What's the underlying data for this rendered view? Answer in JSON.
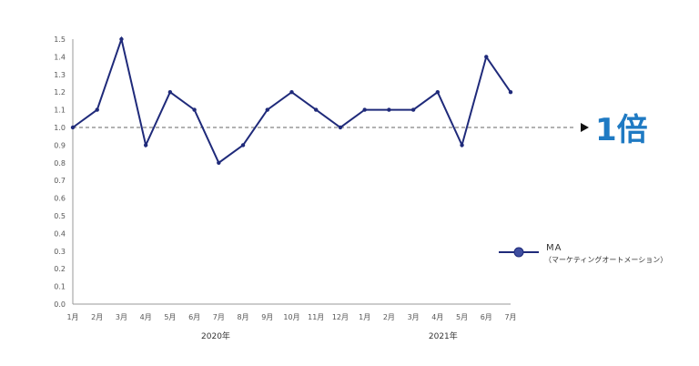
{
  "chart_data": {
    "type": "line",
    "title": "",
    "xlabel": "",
    "ylabel": "",
    "ylim": [
      0,
      1.5
    ],
    "yticks": [
      "0.0",
      "0.1",
      "0.2",
      "0.3",
      "0.4",
      "0.5",
      "0.6",
      "0.7",
      "0.8",
      "0.9",
      "1.0",
      "1.1",
      "1.2",
      "1.3",
      "1.4",
      "1.5"
    ],
    "categories": [
      "1月",
      "2月",
      "3月",
      "4月",
      "5月",
      "6月",
      "7月",
      "8月",
      "9月",
      "10月",
      "11月",
      "12月",
      "1月",
      "2月",
      "3月",
      "4月",
      "5月",
      "6月",
      "7月"
    ],
    "year_labels": [
      "2020年",
      "2021年"
    ],
    "series": [
      {
        "name": "MA",
        "subtitle": "（マーケティングオートメーション）",
        "color": "#1f2a7a",
        "values": [
          1.0,
          1.1,
          1.5,
          0.9,
          1.2,
          1.1,
          0.8,
          0.9,
          1.1,
          1.2,
          1.1,
          1.0,
          1.1,
          1.1,
          1.1,
          1.2,
          0.9,
          1.4,
          1.2
        ]
      }
    ],
    "reference_line": {
      "value": 1.0,
      "style": "dashed",
      "color": "#666666"
    },
    "annotation": {
      "text": "1倍",
      "color": "#1f7ac3"
    },
    "grid": false,
    "legend_position": "right"
  }
}
